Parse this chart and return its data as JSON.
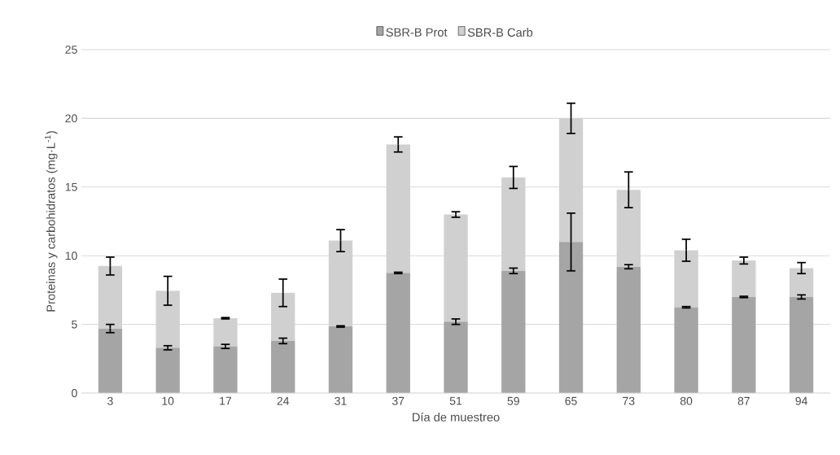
{
  "chart_data": {
    "type": "bar",
    "stacked": true,
    "xlabel": "Día de muestreo",
    "ylabel": "Proteinas y carbohidratos (mg·L$^{-1}$)",
    "categories": [
      "3",
      "10",
      "17",
      "24",
      "31",
      "37",
      "51",
      "59",
      "65",
      "73",
      "80",
      "87",
      "94"
    ],
    "series": [
      {
        "name": "SBR-B Prot",
        "color": "#a5a5a5",
        "values": [
          4.7,
          3.3,
          3.4,
          3.8,
          4.85,
          8.75,
          5.2,
          8.9,
          11.0,
          9.2,
          6.25,
          7.0,
          7.0
        ],
        "errors": [
          0.3,
          0.15,
          0.15,
          0.2,
          0.05,
          0.05,
          0.2,
          0.2,
          2.1,
          0.15,
          0.05,
          0.05,
          0.15
        ]
      },
      {
        "name": "SBR-B Carb",
        "color": "#d0d0d0",
        "values": [
          4.55,
          4.15,
          2.05,
          3.5,
          6.25,
          9.35,
          7.8,
          6.8,
          9.0,
          5.6,
          4.15,
          2.65,
          2.1
        ],
        "errors": [
          0.65,
          1.05,
          0.05,
          1.0,
          0.8,
          0.55,
          0.2,
          0.8,
          1.1,
          1.3,
          0.8,
          0.25,
          0.4
        ]
      }
    ],
    "ylim": [
      0,
      25
    ],
    "yticks": [
      0,
      5,
      10,
      15,
      20,
      25
    ],
    "grid": "y",
    "legend": "top"
  }
}
